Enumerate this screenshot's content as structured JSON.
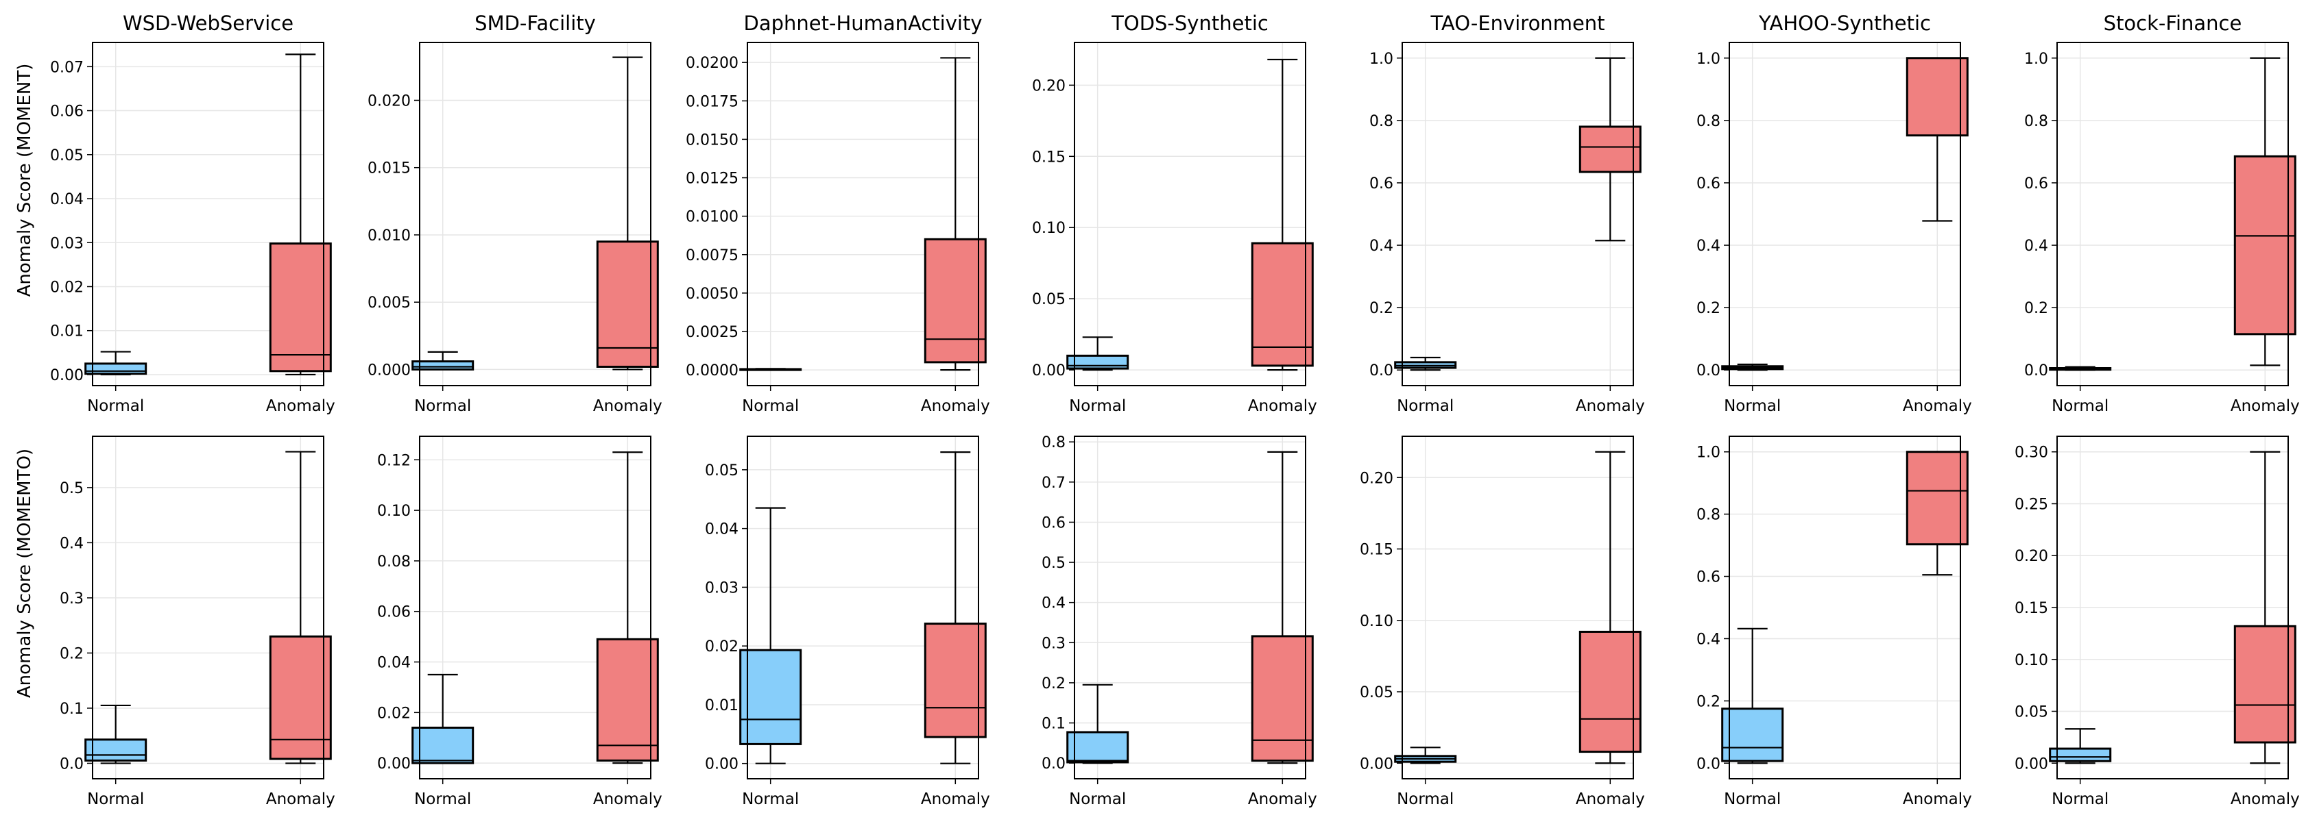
{
  "figure": {
    "row_ylabels": [
      "Anomaly Score (MOMENT)",
      "Anomaly Score (MOMEMTO)"
    ],
    "category_labels": [
      "Normal",
      "Anomaly"
    ]
  },
  "colors": {
    "normal_fill": "#87cefa",
    "anomaly_fill": "#f08080",
    "median": "#000000",
    "grid": "#e6e6e6",
    "axis": "#000000"
  },
  "chart_data": [
    {
      "type": "box",
      "row": 0,
      "col": 0,
      "title": "WSD-WebService",
      "ylim": [
        -0.0025,
        0.0755
      ],
      "yticks": [
        0,
        0.01,
        0.02,
        0.03,
        0.04,
        0.05,
        0.06,
        0.07
      ],
      "tick_labels": [
        "0.00",
        "0.01",
        "0.02",
        "0.03",
        "0.04",
        "0.05",
        "0.06",
        "0.07"
      ],
      "categories": [
        "Normal",
        "Anomaly"
      ],
      "boxes": [
        {
          "whisker_low": 0,
          "q1": 0.0002,
          "median": 0.0008,
          "q3": 0.0025,
          "whisker_high": 0.0052
        },
        {
          "whisker_low": 0,
          "q1": 0.0008,
          "median": 0.0045,
          "q3": 0.0298,
          "whisker_high": 0.0728
        }
      ]
    },
    {
      "type": "box",
      "row": 0,
      "col": 1,
      "title": "SMD-Facility",
      "ylim": [
        -0.0012,
        0.0243
      ],
      "yticks": [
        0,
        0.005,
        0.01,
        0.015,
        0.02
      ],
      "tick_labels": [
        "0.000",
        "0.005",
        "0.010",
        "0.015",
        "0.020"
      ],
      "categories": [
        "Normal",
        "Anomaly"
      ],
      "boxes": [
        {
          "whisker_low": 0,
          "q1": 0,
          "median": 0.0002,
          "q3": 0.0006,
          "whisker_high": 0.0013
        },
        {
          "whisker_low": 0,
          "q1": 0.0002,
          "median": 0.0016,
          "q3": 0.0095,
          "whisker_high": 0.0232
        }
      ]
    },
    {
      "type": "box",
      "row": 0,
      "col": 2,
      "title": "Daphnet-HumanActivity",
      "ylim": [
        -0.00102,
        0.0213
      ],
      "yticks": [
        0,
        0.0025,
        0.005,
        0.0075,
        0.01,
        0.0125,
        0.015,
        0.0175,
        0.02
      ],
      "tick_labels": [
        "0.0000",
        "0.0025",
        "0.0050",
        "0.0075",
        "0.0100",
        "0.0125",
        "0.0150",
        "0.0175",
        "0.0200"
      ],
      "categories": [
        "Normal",
        "Anomaly"
      ],
      "boxes": [
        {
          "whisker_low": 0,
          "q1": 0,
          "median": 0,
          "q3": 5e-05,
          "whisker_high": 8e-05
        },
        {
          "whisker_low": 0,
          "q1": 0.0005,
          "median": 0.002,
          "q3": 0.0085,
          "whisker_high": 0.0203
        }
      ]
    },
    {
      "type": "box",
      "row": 0,
      "col": 3,
      "title": "TODS-Synthetic",
      "ylim": [
        -0.011,
        0.23
      ],
      "yticks": [
        0,
        0.05,
        0.1,
        0.15,
        0.2
      ],
      "tick_labels": [
        "0.00",
        "0.05",
        "0.10",
        "0.15",
        "0.20"
      ],
      "categories": [
        "Normal",
        "Anomaly"
      ],
      "boxes": [
        {
          "whisker_low": 0,
          "q1": 0.001,
          "median": 0.003,
          "q3": 0.01,
          "whisker_high": 0.023
        },
        {
          "whisker_low": 0,
          "q1": 0.003,
          "median": 0.016,
          "q3": 0.089,
          "whisker_high": 0.218
        }
      ]
    },
    {
      "type": "box",
      "row": 0,
      "col": 4,
      "title": "TAO-Environment",
      "ylim": [
        -0.05,
        1.05
      ],
      "yticks": [
        0,
        0.2,
        0.4,
        0.6,
        0.8,
        1.0
      ],
      "tick_labels": [
        "0.0",
        "0.2",
        "0.4",
        "0.6",
        "0.8",
        "1.0"
      ],
      "categories": [
        "Normal",
        "Anomaly"
      ],
      "boxes": [
        {
          "whisker_low": 0,
          "q1": 0.007,
          "median": 0.014,
          "q3": 0.025,
          "whisker_high": 0.04
        },
        {
          "whisker_low": 0.415,
          "q1": 0.635,
          "median": 0.715,
          "q3": 0.78,
          "whisker_high": 1.0
        }
      ]
    },
    {
      "type": "box",
      "row": 0,
      "col": 5,
      "title": "YAHOO-Synthetic",
      "ylim": [
        -0.05,
        1.05
      ],
      "yticks": [
        0,
        0.2,
        0.4,
        0.6,
        0.8,
        1.0
      ],
      "tick_labels": [
        "0.0",
        "0.2",
        "0.4",
        "0.6",
        "0.8",
        "1.0"
      ],
      "categories": [
        "Normal",
        "Anomaly"
      ],
      "boxes": [
        {
          "whisker_low": 0,
          "q1": 0.003,
          "median": 0.007,
          "q3": 0.012,
          "whisker_high": 0.018
        },
        {
          "whisker_low": 0.478,
          "q1": 0.752,
          "median": 1.0,
          "q3": 1.0,
          "whisker_high": 1.0
        }
      ]
    },
    {
      "type": "box",
      "row": 0,
      "col": 6,
      "title": "Stock-Finance",
      "ylim": [
        -0.05,
        1.05
      ],
      "yticks": [
        0,
        0.2,
        0.4,
        0.6,
        0.8,
        1.0
      ],
      "tick_labels": [
        "0.0",
        "0.2",
        "0.4",
        "0.6",
        "0.8",
        "1.0"
      ],
      "categories": [
        "Normal",
        "Anomaly"
      ],
      "boxes": [
        {
          "whisker_low": 0,
          "q1": 0.001,
          "median": 0.003,
          "q3": 0.006,
          "whisker_high": 0.01
        },
        {
          "whisker_low": 0.015,
          "q1": 0.115,
          "median": 0.43,
          "q3": 0.685,
          "whisker_high": 1.0
        }
      ]
    },
    {
      "type": "box",
      "row": 1,
      "col": 0,
      "title": "",
      "ylim": [
        -0.028,
        0.593
      ],
      "yticks": [
        0,
        0.1,
        0.2,
        0.3,
        0.4,
        0.5
      ],
      "tick_labels": [
        "0.0",
        "0.1",
        "0.2",
        "0.3",
        "0.4",
        "0.5"
      ],
      "categories": [
        "Normal",
        "Anomaly"
      ],
      "boxes": [
        {
          "whisker_low": 0,
          "q1": 0.005,
          "median": 0.015,
          "q3": 0.043,
          "whisker_high": 0.105
        },
        {
          "whisker_low": 0,
          "q1": 0.008,
          "median": 0.043,
          "q3": 0.23,
          "whisker_high": 0.565
        }
      ]
    },
    {
      "type": "box",
      "row": 1,
      "col": 1,
      "title": "",
      "ylim": [
        -0.0062,
        0.1293
      ],
      "yticks": [
        0,
        0.02,
        0.04,
        0.06,
        0.08,
        0.1,
        0.12
      ],
      "tick_labels": [
        "0.00",
        "0.02",
        "0.04",
        "0.06",
        "0.08",
        "0.10",
        "0.12"
      ],
      "categories": [
        "Normal",
        "Anomaly"
      ],
      "boxes": [
        {
          "whisker_low": 0,
          "q1": 0,
          "median": 0.001,
          "q3": 0.014,
          "whisker_high": 0.035
        },
        {
          "whisker_low": 0,
          "q1": 0.001,
          "median": 0.007,
          "q3": 0.049,
          "whisker_high": 0.123
        }
      ]
    },
    {
      "type": "box",
      "row": 1,
      "col": 2,
      "title": "",
      "ylim": [
        -0.0026,
        0.0557
      ],
      "yticks": [
        0,
        0.01,
        0.02,
        0.03,
        0.04,
        0.05
      ],
      "tick_labels": [
        "0.00",
        "0.01",
        "0.02",
        "0.03",
        "0.04",
        "0.05"
      ],
      "categories": [
        "Normal",
        "Anomaly"
      ],
      "boxes": [
        {
          "whisker_low": 0,
          "q1": 0.0033,
          "median": 0.0075,
          "q3": 0.0193,
          "whisker_high": 0.0435
        },
        {
          "whisker_low": 0,
          "q1": 0.0045,
          "median": 0.0095,
          "q3": 0.0238,
          "whisker_high": 0.053
        }
      ]
    },
    {
      "type": "box",
      "row": 1,
      "col": 3,
      "title": "",
      "ylim": [
        -0.039,
        0.814
      ],
      "yticks": [
        0,
        0.1,
        0.2,
        0.3,
        0.4,
        0.5,
        0.6,
        0.7,
        0.8
      ],
      "tick_labels": [
        "0.0",
        "0.1",
        "0.2",
        "0.3",
        "0.4",
        "0.5",
        "0.6",
        "0.7",
        "0.8"
      ],
      "categories": [
        "Normal",
        "Anomaly"
      ],
      "boxes": [
        {
          "whisker_low": 0,
          "q1": 0.002,
          "median": 0.006,
          "q3": 0.077,
          "whisker_high": 0.195
        },
        {
          "whisker_low": 0,
          "q1": 0.006,
          "median": 0.057,
          "q3": 0.316,
          "whisker_high": 0.775
        }
      ]
    },
    {
      "type": "box",
      "row": 1,
      "col": 4,
      "title": "",
      "ylim": [
        -0.0109,
        0.2289
      ],
      "yticks": [
        0,
        0.05,
        0.1,
        0.15,
        0.2
      ],
      "tick_labels": [
        "0.00",
        "0.05",
        "0.10",
        "0.15",
        "0.20"
      ],
      "categories": [
        "Normal",
        "Anomaly"
      ],
      "boxes": [
        {
          "whisker_low": 0,
          "q1": 0.001,
          "median": 0.003,
          "q3": 0.005,
          "whisker_high": 0.011
        },
        {
          "whisker_low": 0,
          "q1": 0.008,
          "median": 0.031,
          "q3": 0.092,
          "whisker_high": 0.218
        }
      ]
    },
    {
      "type": "box",
      "row": 1,
      "col": 5,
      "title": "",
      "ylim": [
        -0.05,
        1.05
      ],
      "yticks": [
        0,
        0.2,
        0.4,
        0.6,
        0.8,
        1.0
      ],
      "tick_labels": [
        "0.0",
        "0.2",
        "0.4",
        "0.6",
        "0.8",
        "1.0"
      ],
      "categories": [
        "Normal",
        "Anomaly"
      ],
      "boxes": [
        {
          "whisker_low": 0,
          "q1": 0.007,
          "median": 0.05,
          "q3": 0.175,
          "whisker_high": 0.432
        },
        {
          "whisker_low": 0.605,
          "q1": 0.703,
          "median": 0.875,
          "q3": 1.0,
          "whisker_high": 1.0
        }
      ]
    },
    {
      "type": "box",
      "row": 1,
      "col": 6,
      "title": "",
      "ylim": [
        -0.015,
        0.315
      ],
      "yticks": [
        0,
        0.05,
        0.1,
        0.15,
        0.2,
        0.25,
        0.3
      ],
      "tick_labels": [
        "0.00",
        "0.05",
        "0.10",
        "0.15",
        "0.20",
        "0.25",
        "0.30"
      ],
      "categories": [
        "Normal",
        "Anomaly"
      ],
      "boxes": [
        {
          "whisker_low": 0,
          "q1": 0.002,
          "median": 0.006,
          "q3": 0.014,
          "whisker_high": 0.033
        },
        {
          "whisker_low": 0,
          "q1": 0.02,
          "median": 0.056,
          "q3": 0.132,
          "whisker_high": 0.3
        }
      ]
    }
  ]
}
